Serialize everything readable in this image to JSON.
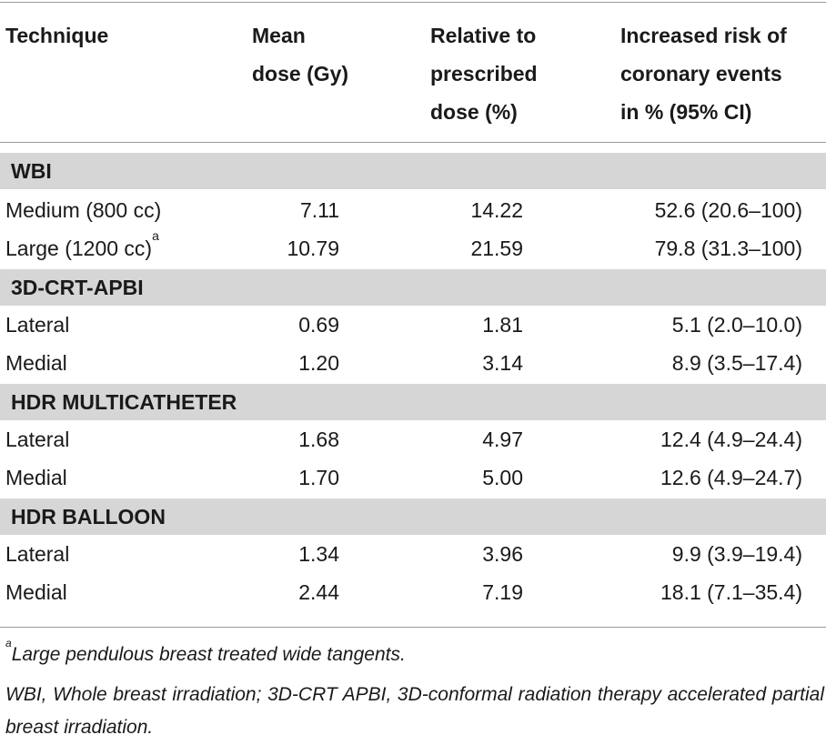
{
  "table": {
    "headers": {
      "technique": "Technique",
      "mean_dose": "Mean\ndose (Gy)",
      "relative": "Relative to\nprescribed\ndose (%)",
      "risk": "Increased risk of\ncoronary events\nin % (95% CI)"
    },
    "sections": [
      {
        "title": "WBI",
        "rows": [
          {
            "technique": "Medium (800 cc)",
            "mean_dose": "7.11",
            "relative": "14.22",
            "risk": "52.6 (20.6–100)"
          },
          {
            "technique": "Large (1200 cc)",
            "sup": "a",
            "mean_dose": "10.79",
            "relative": "21.59",
            "risk": "79.8 (31.3–100)"
          }
        ]
      },
      {
        "title": "3D-CRT-APBI",
        "rows": [
          {
            "technique": "Lateral",
            "mean_dose": "0.69",
            "relative": "1.81",
            "risk": "5.1 (2.0–10.0)"
          },
          {
            "technique": "Medial",
            "mean_dose": "1.20",
            "relative": "3.14",
            "risk": "8.9 (3.5–17.4)"
          }
        ]
      },
      {
        "title": "HDR MULTICATHETER",
        "rows": [
          {
            "technique": "Lateral",
            "mean_dose": "1.68",
            "relative": "4.97",
            "risk": "12.4 (4.9–24.4)"
          },
          {
            "technique": "Medial",
            "mean_dose": "1.70",
            "relative": "5.00",
            "risk": "12.6 (4.9–24.7)"
          }
        ]
      },
      {
        "title": "HDR BALLOON",
        "rows": [
          {
            "technique": "Lateral",
            "mean_dose": "1.34",
            "relative": "3.96",
            "risk": "9.9 (3.9–19.4)"
          },
          {
            "technique": "Medial",
            "mean_dose": "2.44",
            "relative": "7.19",
            "risk": "18.1 (7.1–35.4)"
          }
        ]
      }
    ]
  },
  "footnotes": {
    "a_marker": "a",
    "a_text": "Large pendulous breast treated wide tangents.",
    "abbreviations": "WBI, Whole breast irradiation; 3D-CRT APBI, 3D-conformal radiation therapy accelerated partial breast irradiation."
  }
}
